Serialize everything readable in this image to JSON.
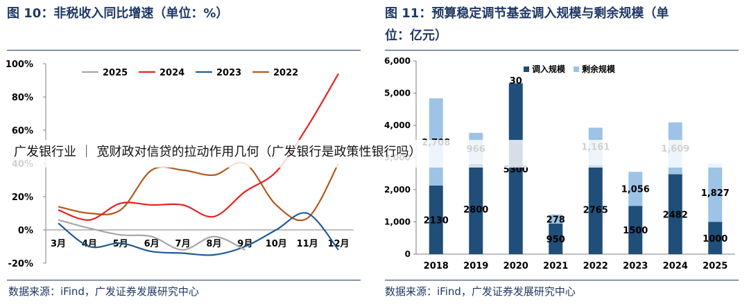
{
  "left_panel": {
    "title": "图  10：非税收入同比增速（单位：%）",
    "source": "数据来源：iFind，广发证券发展研究中心"
  },
  "right_panel": {
    "title_line1": "图  11：预算稳定调节基金调入规模与剩余规模（单",
    "title_line2": "位：亿元）",
    "source": "数据来源：iFind，广发证券发展研究中心"
  },
  "overlay": {
    "text": "广发银行业 ｜ 宽财政对信贷的拉动作用几何（广发银行是政策性银行吗）"
  },
  "chart_data": [
    {
      "type": "line",
      "categories": [
        "3月",
        "4月",
        "5月",
        "6月",
        "7月",
        "8月",
        "9月",
        "10月",
        "11月",
        "12月"
      ],
      "ytick_labels": [
        "100%",
        "80%",
        "60%",
        "40%",
        "20%",
        "0%",
        "-20%"
      ],
      "ylim": [
        -20,
        100
      ],
      "grid": false,
      "legend_position": "top",
      "series": [
        {
          "name": "2025",
          "color": "#a6a6a6",
          "values": [
            6,
            1,
            -3,
            -4,
            -12,
            -4,
            -12,
            null,
            null,
            null
          ]
        },
        {
          "name": "2024",
          "color": "#e8201d",
          "values": [
            12,
            6,
            16,
            15,
            15,
            8,
            23,
            35,
            62,
            94
          ]
        },
        {
          "name": "2023",
          "color": "#1f5a91",
          "values": [
            4,
            -10,
            -8,
            -13,
            -14,
            -15,
            -10,
            0,
            10,
            -12
          ]
        },
        {
          "name": "2022",
          "color": "#b4571b",
          "values": [
            14,
            10,
            12,
            36,
            36,
            33,
            40,
            15,
            7,
            40
          ]
        }
      ]
    },
    {
      "type": "bar",
      "stacked": true,
      "categories": [
        "2018",
        "2019",
        "2020",
        "2021",
        "2022",
        "2023",
        "2024",
        "2025"
      ],
      "ytick_labels": [
        "6,000",
        "5,000",
        "4,000",
        "3,000",
        "2,000",
        "1,000",
        "0"
      ],
      "ylim": [
        0,
        6000
      ],
      "grid": false,
      "legend_position": "top",
      "series": [
        {
          "name": "调入规模",
          "color": "#1f4e79",
          "values": [
            2130,
            2800,
            5300,
            950,
            2765,
            1500,
            2482,
            1000
          ]
        },
        {
          "name": "剩余规模",
          "color": "#9dc3e6",
          "values": [
            2708,
            966,
            30,
            278,
            1161,
            1056,
            1609,
            1827
          ]
        }
      ],
      "data_labels": {
        "调入规模": [
          "2130",
          "2800",
          "5300",
          "950",
          "2765",
          "1500",
          "2482",
          "1000"
        ],
        "剩余规模": [
          "2,708",
          "966",
          "30",
          "278",
          "1,161",
          "1,056",
          "1,609",
          "1,827"
        ]
      }
    }
  ]
}
